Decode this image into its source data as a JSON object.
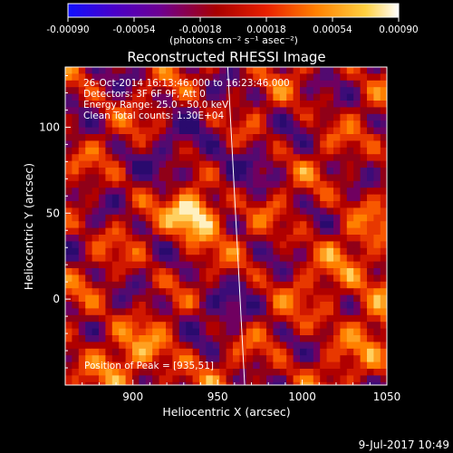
{
  "colorbar": {
    "ticks": [
      "-0.00090",
      "-0.00054",
      "-0.00018",
      "0.00018",
      "0.00054",
      "0.00090"
    ],
    "unit_label": "(photons cm⁻² s⁻¹ asec⁻²)",
    "range": [
      -0.0009,
      0.0009
    ],
    "colormap": [
      "#1010ff",
      "#4a00c8",
      "#6e0090",
      "#a80000",
      "#e82000",
      "#ff8000",
      "#ffd040",
      "#ffffff"
    ]
  },
  "chart_data": {
    "type": "heatmap",
    "title": "Reconstructed RHESSI Image",
    "xlabel": "Heliocentric X (arcsec)",
    "ylabel": "Heliocentric Y (arcsec)",
    "xlim": [
      860,
      1050
    ],
    "ylim": [
      -50,
      135
    ],
    "x_ticks": [
      900,
      950,
      1000,
      1050
    ],
    "y_ticks": [
      0,
      50,
      100
    ],
    "x_tick_labels": [
      "900",
      "950",
      "1000",
      "1050"
    ],
    "y_tick_labels": [
      "0",
      "50",
      "100"
    ],
    "annotations": [
      "26-Oct-2014 16:13:46.000 to 16:23:46.000",
      "Detectors: 3F 6F 9F, Att 0",
      "Energy Range: 25.0 - 50.0 keV",
      "Clean     Total counts: 1.30E+04"
    ],
    "peak_label": "Position of Peak = [935,51]",
    "peak": {
      "x": 935,
      "y": 51
    },
    "limb_line": {
      "x_start": 956,
      "y_start": 135,
      "x_end": 966,
      "y_end": -50
    }
  },
  "footer": {
    "date": "9-Jul-2017 10:49"
  }
}
